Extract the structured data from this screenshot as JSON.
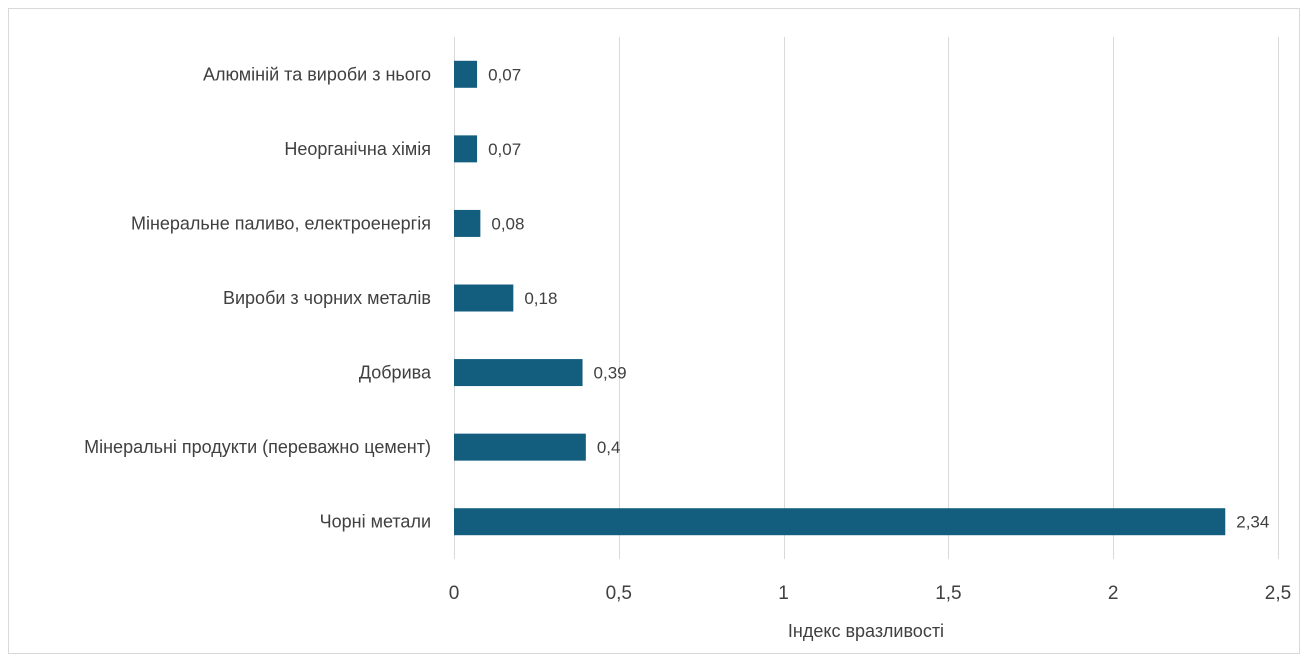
{
  "chart_data": {
    "type": "bar",
    "orientation": "horizontal",
    "categories": [
      "Алюміній та вироби з нього",
      "Неорганічна хімія",
      "Мінеральне паливо, електроенергія",
      "Вироби з чорних металів",
      "Добрива",
      "Мінеральні продукти (переважно цемент)",
      "Чорні метали"
    ],
    "values": [
      0.07,
      0.07,
      0.08,
      0.18,
      0.39,
      0.4,
      2.34
    ],
    "data_labels": [
      "0,07",
      "0,07",
      "0,08",
      "0,18",
      "0,39",
      "0,4",
      "2,34"
    ],
    "xlabel": "Індекс вразливості",
    "ylabel": "",
    "xlim": [
      0,
      2.5
    ],
    "xticks": [
      0,
      0.5,
      1,
      1.5,
      2,
      2.5
    ],
    "xtick_labels": [
      "0",
      "0,5",
      "1",
      "1,5",
      "2",
      "2,5"
    ],
    "grid": "vertical",
    "legend": "none",
    "bar_color": "#135e7f",
    "grid_color": "#d9d9d9",
    "text_color": "#404040"
  }
}
